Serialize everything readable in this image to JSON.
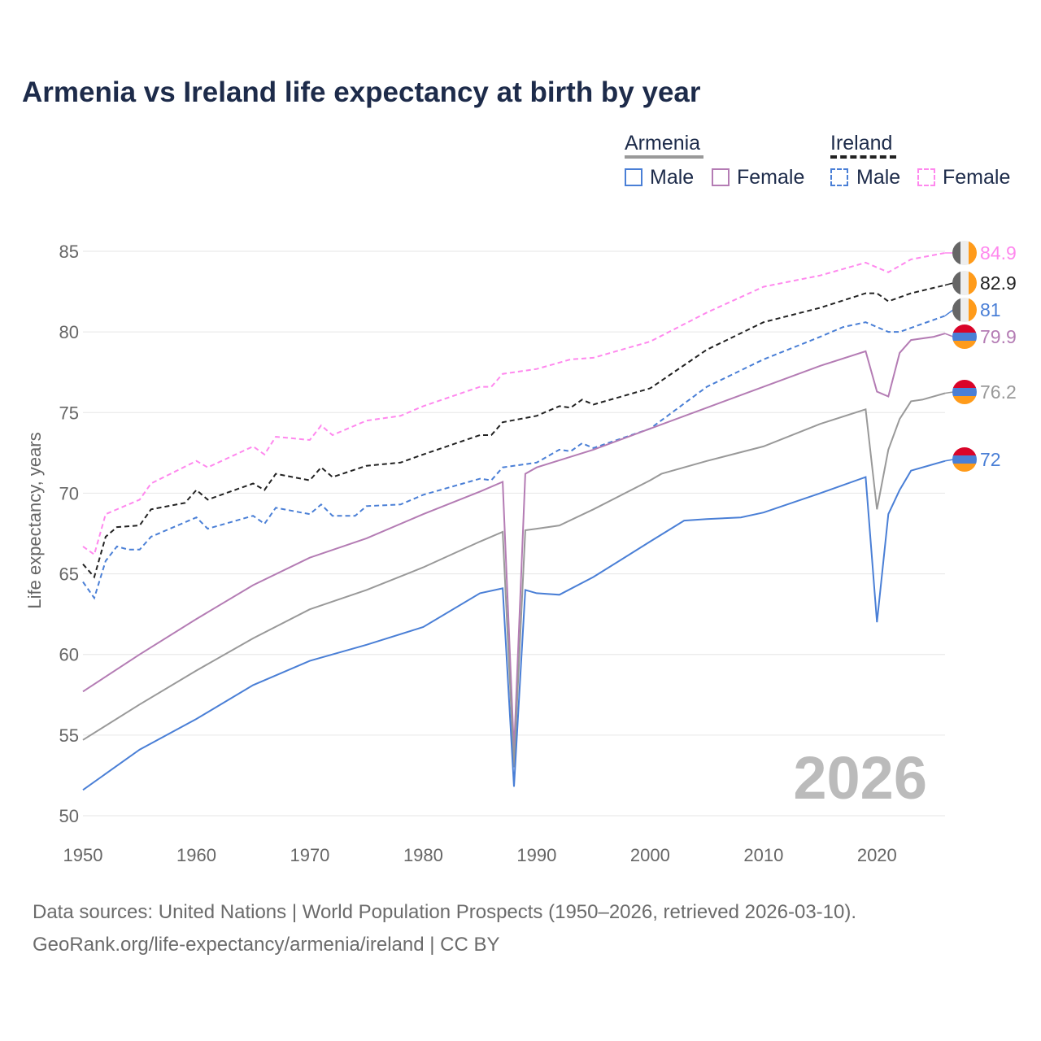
{
  "chart_data": {
    "type": "line",
    "title": "Armenia vs Ireland life expectancy at birth by year",
    "xlabel": "",
    "ylabel": "Life expectancy, years",
    "xlim": [
      1950,
      2026
    ],
    "ylim": [
      50,
      86
    ],
    "xticks": [
      1950,
      1960,
      1970,
      1980,
      1990,
      2000,
      2010,
      2020
    ],
    "yticks": [
      50,
      55,
      60,
      65,
      70,
      75,
      80,
      85
    ],
    "grid": true,
    "legend_position": "top-right",
    "year_watermark": "2026",
    "legend": {
      "groups": [
        {
          "label": "Armenia",
          "style": "solid",
          "color": "#999999",
          "items": [
            {
              "label": "Male",
              "color": "#4a7fd6"
            },
            {
              "label": "Female",
              "color": "#b47cb4"
            }
          ]
        },
        {
          "label": "Ireland",
          "style": "dashed",
          "color": "#222222",
          "items": [
            {
              "label": "Male",
              "color": "#4a7fd6"
            },
            {
              "label": "Female",
              "color": "#ff88ee"
            }
          ]
        }
      ]
    },
    "series": [
      {
        "name": "Ireland Female",
        "country": "Ireland",
        "color": "#ff88ee",
        "dashed": true,
        "end_label": "84.9",
        "points": [
          [
            1950,
            66.7
          ],
          [
            1951,
            66.2
          ],
          [
            1952,
            68.7
          ],
          [
            1955,
            69.6
          ],
          [
            1956,
            70.6
          ],
          [
            1960,
            72
          ],
          [
            1961,
            71.6
          ],
          [
            1965,
            72.9
          ],
          [
            1966,
            72.4
          ],
          [
            1967,
            73.5
          ],
          [
            1970,
            73.3
          ],
          [
            1971,
            74.2
          ],
          [
            1972,
            73.6
          ],
          [
            1975,
            74.5
          ],
          [
            1978,
            74.8
          ],
          [
            1980,
            75.4
          ],
          [
            1985,
            76.6
          ],
          [
            1986,
            76.6
          ],
          [
            1987,
            77.4
          ],
          [
            1990,
            77.7
          ],
          [
            1993,
            78.3
          ],
          [
            1995,
            78.4
          ],
          [
            2000,
            79.4
          ],
          [
            2005,
            81.2
          ],
          [
            2010,
            82.8
          ],
          [
            2015,
            83.5
          ],
          [
            2019,
            84.3
          ],
          [
            2021,
            83.7
          ],
          [
            2023,
            84.5
          ],
          [
            2026,
            84.9
          ]
        ]
      },
      {
        "name": "Ireland",
        "country": "Ireland",
        "color": "#222222",
        "dashed": true,
        "end_label": "82.9",
        "points": [
          [
            1950,
            65.6
          ],
          [
            1951,
            64.8
          ],
          [
            1952,
            67.3
          ],
          [
            1953,
            67.9
          ],
          [
            1955,
            68
          ],
          [
            1956,
            69
          ],
          [
            1959,
            69.4
          ],
          [
            1960,
            70.2
          ],
          [
            1961,
            69.6
          ],
          [
            1965,
            70.6
          ],
          [
            1966,
            70.2
          ],
          [
            1967,
            71.2
          ],
          [
            1970,
            70.8
          ],
          [
            1971,
            71.6
          ],
          [
            1972,
            71
          ],
          [
            1975,
            71.7
          ],
          [
            1978,
            71.9
          ],
          [
            1980,
            72.4
          ],
          [
            1985,
            73.6
          ],
          [
            1986,
            73.6
          ],
          [
            1987,
            74.4
          ],
          [
            1990,
            74.8
          ],
          [
            1992,
            75.4
          ],
          [
            1993,
            75.3
          ],
          [
            1994,
            75.8
          ],
          [
            1995,
            75.5
          ],
          [
            2000,
            76.5
          ],
          [
            2005,
            78.9
          ],
          [
            2010,
            80.6
          ],
          [
            2015,
            81.5
          ],
          [
            2019,
            82.4
          ],
          [
            2020,
            82.4
          ],
          [
            2021,
            81.9
          ],
          [
            2023,
            82.4
          ],
          [
            2026,
            82.9
          ]
        ]
      },
      {
        "name": "Ireland Male",
        "country": "Ireland",
        "color": "#4a7fd6",
        "dashed": true,
        "end_label": "81",
        "points": [
          [
            1950,
            64.5
          ],
          [
            1951,
            63.5
          ],
          [
            1952,
            65.8
          ],
          [
            1953,
            66.7
          ],
          [
            1954,
            66.5
          ],
          [
            1955,
            66.5
          ],
          [
            1956,
            67.3
          ],
          [
            1960,
            68.5
          ],
          [
            1961,
            67.8
          ],
          [
            1965,
            68.6
          ],
          [
            1966,
            68.1
          ],
          [
            1967,
            69.1
          ],
          [
            1970,
            68.7
          ],
          [
            1971,
            69.3
          ],
          [
            1972,
            68.6
          ],
          [
            1974,
            68.6
          ],
          [
            1975,
            69.2
          ],
          [
            1978,
            69.3
          ],
          [
            1980,
            69.9
          ],
          [
            1985,
            70.9
          ],
          [
            1986,
            70.8
          ],
          [
            1987,
            71.6
          ],
          [
            1990,
            71.9
          ],
          [
            1992,
            72.7
          ],
          [
            1993,
            72.6
          ],
          [
            1994,
            73.1
          ],
          [
            1995,
            72.8
          ],
          [
            2000,
            74
          ],
          [
            2005,
            76.6
          ],
          [
            2010,
            78.3
          ],
          [
            2015,
            79.7
          ],
          [
            2017,
            80.3
          ],
          [
            2019,
            80.6
          ],
          [
            2021,
            80
          ],
          [
            2022,
            80
          ],
          [
            2026,
            81
          ]
        ]
      },
      {
        "name": "Armenia Female",
        "country": "Armenia",
        "color": "#b47cb4",
        "dashed": false,
        "end_label": "79.9",
        "points": [
          [
            1950,
            57.7
          ],
          [
            1955,
            60
          ],
          [
            1960,
            62.2
          ],
          [
            1965,
            64.3
          ],
          [
            1970,
            66
          ],
          [
            1975,
            67.2
          ],
          [
            1980,
            68.7
          ],
          [
            1985,
            70.1
          ],
          [
            1987,
            70.7
          ],
          [
            1988,
            54
          ],
          [
            1989,
            71.2
          ],
          [
            1990,
            71.6
          ],
          [
            1995,
            72.7
          ],
          [
            2000,
            74
          ],
          [
            2005,
            75.3
          ],
          [
            2010,
            76.6
          ],
          [
            2015,
            77.9
          ],
          [
            2019,
            78.8
          ],
          [
            2020,
            76.3
          ],
          [
            2021,
            76
          ],
          [
            2022,
            78.7
          ],
          [
            2023,
            79.5
          ],
          [
            2025,
            79.7
          ],
          [
            2026,
            79.9
          ]
        ]
      },
      {
        "name": "Armenia",
        "country": "Armenia",
        "color": "#999999",
        "dashed": false,
        "end_label": "76.2",
        "points": [
          [
            1950,
            54.7
          ],
          [
            1955,
            56.9
          ],
          [
            1960,
            59
          ],
          [
            1965,
            61
          ],
          [
            1970,
            62.8
          ],
          [
            1975,
            64
          ],
          [
            1980,
            65.4
          ],
          [
            1985,
            67
          ],
          [
            1987,
            67.6
          ],
          [
            1988,
            53
          ],
          [
            1989,
            67.7
          ],
          [
            1990,
            67.8
          ],
          [
            1992,
            68
          ],
          [
            1995,
            69
          ],
          [
            2000,
            70.8
          ],
          [
            2001,
            71.2
          ],
          [
            2005,
            72
          ],
          [
            2010,
            72.9
          ],
          [
            2015,
            74.3
          ],
          [
            2019,
            75.2
          ],
          [
            2020,
            69
          ],
          [
            2021,
            72.7
          ],
          [
            2022,
            74.6
          ],
          [
            2023,
            75.7
          ],
          [
            2024,
            75.8
          ],
          [
            2026,
            76.2
          ]
        ]
      },
      {
        "name": "Armenia Male",
        "country": "Armenia",
        "color": "#4a7fd6",
        "dashed": false,
        "end_label": "72",
        "points": [
          [
            1950,
            51.6
          ],
          [
            1955,
            54.1
          ],
          [
            1960,
            56
          ],
          [
            1965,
            58.1
          ],
          [
            1970,
            59.6
          ],
          [
            1975,
            60.6
          ],
          [
            1980,
            61.7
          ],
          [
            1985,
            63.8
          ],
          [
            1987,
            64.1
          ],
          [
            1988,
            51.8
          ],
          [
            1989,
            64
          ],
          [
            1990,
            63.8
          ],
          [
            1992,
            63.7
          ],
          [
            1995,
            64.8
          ],
          [
            2000,
            67
          ],
          [
            2003,
            68.3
          ],
          [
            2005,
            68.4
          ],
          [
            2008,
            68.5
          ],
          [
            2010,
            68.8
          ],
          [
            2015,
            70
          ],
          [
            2019,
            71
          ],
          [
            2020,
            62
          ],
          [
            2021,
            68.7
          ],
          [
            2022,
            70.2
          ],
          [
            2023,
            71.4
          ],
          [
            2026,
            72
          ]
        ]
      }
    ]
  },
  "footer": {
    "line1": "Data sources: United Nations | World Population Prospects (1950–2026, retrieved 2026-03-10).",
    "line2": "GeoRank.org/life-expectancy/armenia/ireland | CC BY"
  }
}
